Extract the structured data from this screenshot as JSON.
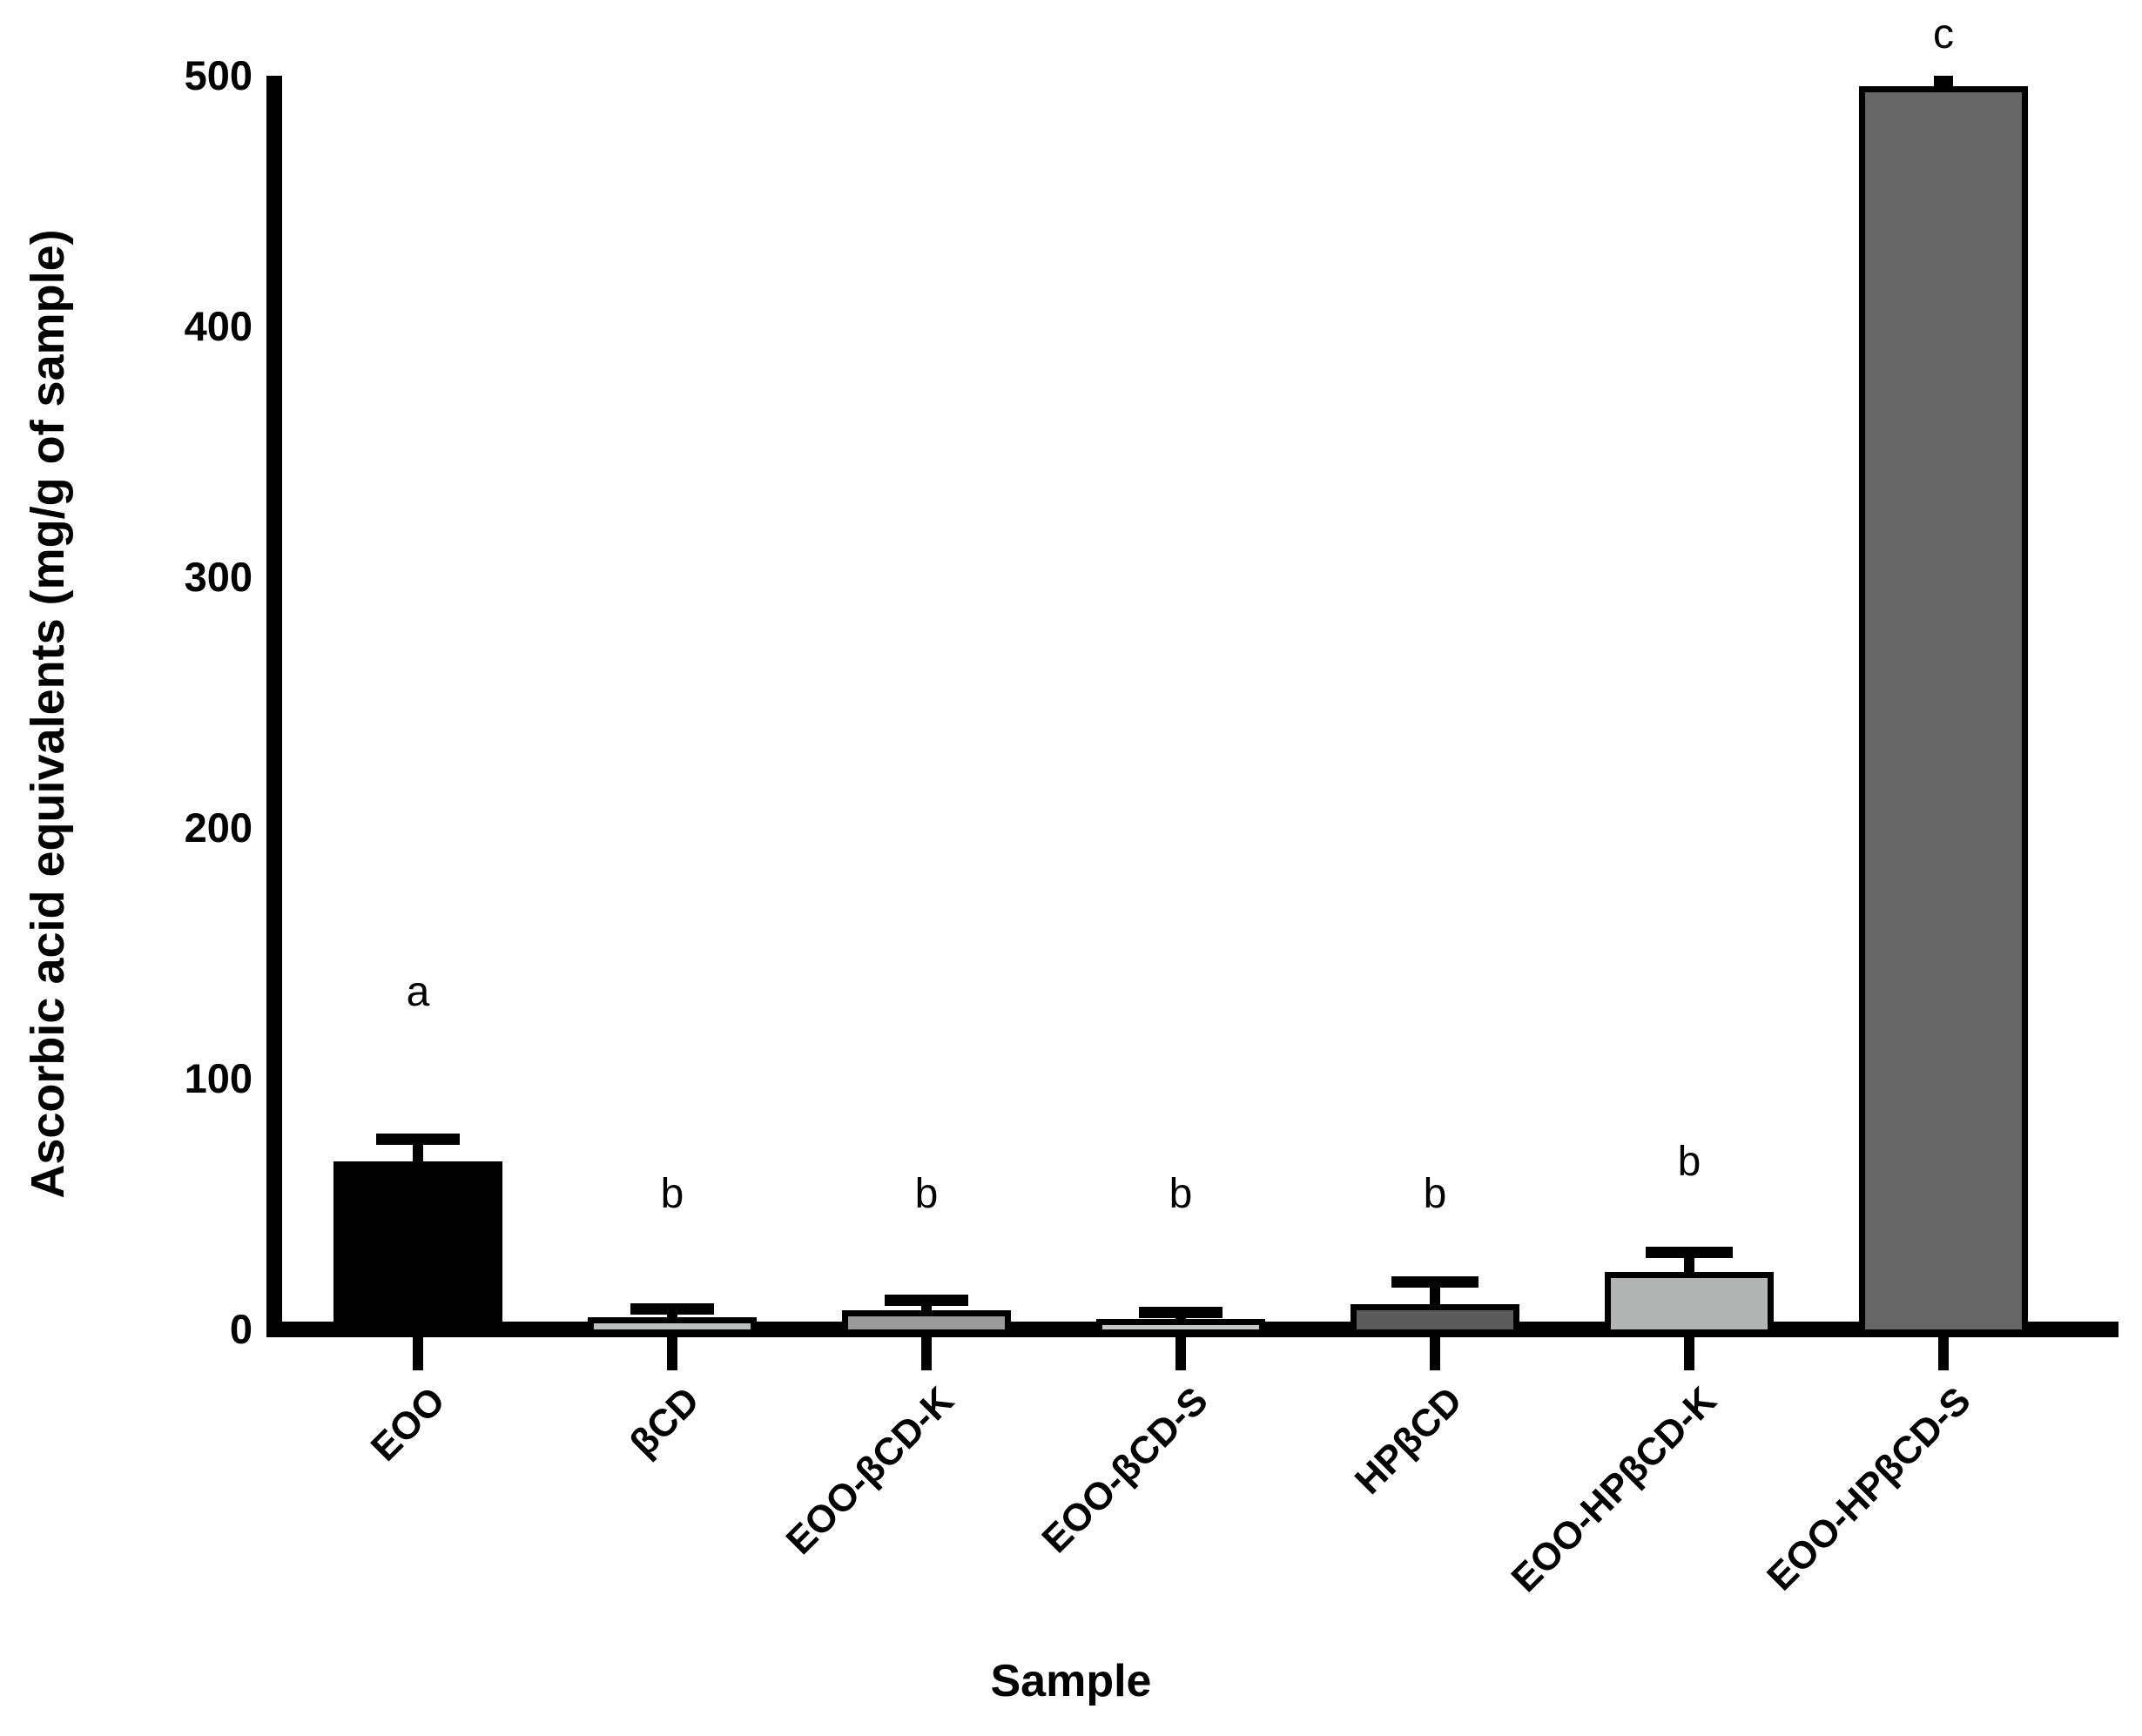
{
  "figure": {
    "background": "#ffffff",
    "text_color": "#000000"
  },
  "chart_data": {
    "type": "bar",
    "title": "",
    "xlabel": "Sample",
    "ylabel": "Ascorbic acid equivalents (mg/g of sample)",
    "categories": [
      "EOO",
      "βCD",
      "EOO-βCD-K",
      "EOO-βCD-S",
      "HPβCD",
      "EOO-HPβCD-K",
      "EOO-HPβCD-S"
    ],
    "values": [
      67,
      5,
      7.5,
      4,
      10,
      23,
      496
    ],
    "errors_upper": [
      9,
      3.3,
      4.3,
      3,
      9,
      8,
      2
    ],
    "sig_letters": [
      "a",
      "b",
      "b",
      "b",
      "b",
      "b",
      "c"
    ],
    "bar_colors": [
      "#000000",
      "#bdbfbe",
      "#9a9a9a",
      "#c6c8c7",
      "#5a5b5a",
      "#b2b4b3",
      "#656665"
    ],
    "bar_outline_color": "#000000",
    "error_bar_color": "#000000",
    "axis_color": "#000000",
    "ylim": [
      0,
      500
    ],
    "yticks": [
      0,
      100,
      200,
      300,
      400,
      500
    ],
    "grid": false,
    "legend": null
  }
}
